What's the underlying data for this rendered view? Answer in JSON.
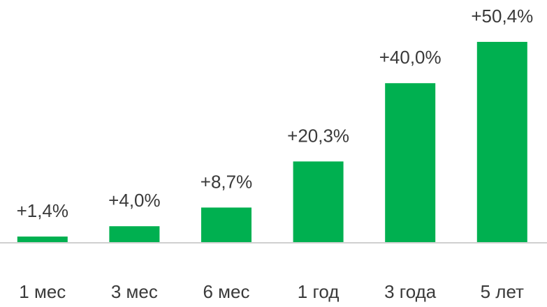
{
  "chart_data": {
    "type": "bar",
    "categories": [
      "1 мес",
      "3 мес",
      "6 мес",
      "1 год",
      "3 года",
      "5 лет"
    ],
    "values": [
      1.4,
      4.0,
      8.7,
      20.3,
      40.0,
      50.4
    ],
    "value_labels": [
      "+1,4%",
      "+4,0%",
      "+8,7%",
      "+20,3%",
      "+40,0%",
      "+50,4%"
    ],
    "color": "#00b050"
  }
}
